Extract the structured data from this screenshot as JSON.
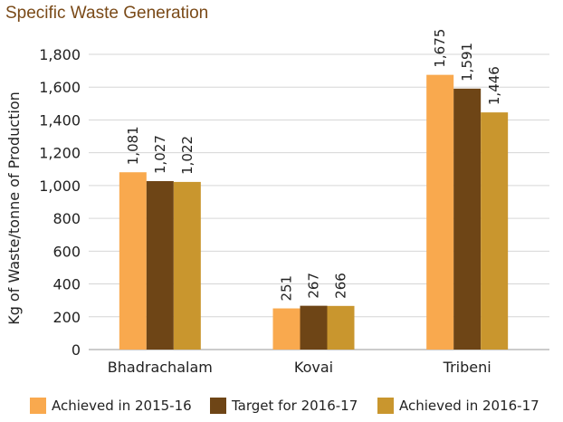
{
  "chart_data": {
    "type": "bar",
    "title": "Specific Waste Generation",
    "ylabel": "Kg of Waste/tonne of Production",
    "xlabel": "",
    "categories": [
      "Bhadrachalam",
      "Kovai",
      "Tribeni"
    ],
    "series": [
      {
        "name": "Achieved in 2015-16",
        "values": [
          1081,
          251,
          1675
        ],
        "labels": [
          "1,081",
          "251",
          "1,675"
        ],
        "color": "#f9a94e"
      },
      {
        "name": "Target for 2016-17",
        "values": [
          1027,
          267,
          1591
        ],
        "labels": [
          "1,027",
          "267",
          "1,591"
        ],
        "color": "#6e4516"
      },
      {
        "name": "Achieved in 2016-17",
        "values": [
          1022,
          266,
          1446
        ],
        "labels": [
          "1,022",
          "266",
          "1,446"
        ],
        "color": "#c9962e"
      }
    ],
    "ylim": [
      0,
      1800
    ],
    "yticks": [
      0,
      200,
      400,
      600,
      800,
      1000,
      1200,
      1400,
      1600,
      1800
    ],
    "ytick_labels": [
      "0",
      "200",
      "400",
      "600",
      "800",
      "1,000",
      "1,200",
      "1,400",
      "1,600",
      "1,800"
    ],
    "grid": true,
    "legend_position": "bottom"
  }
}
